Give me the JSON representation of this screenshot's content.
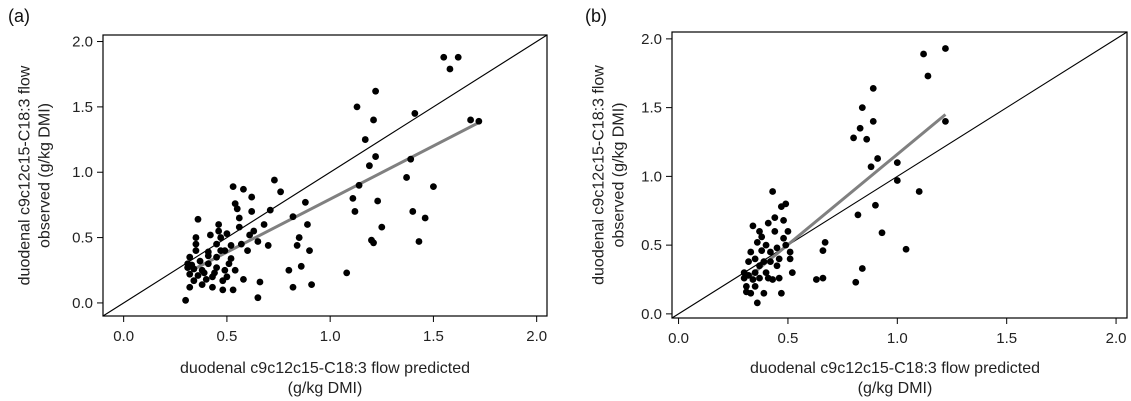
{
  "chart_data": [
    {
      "type": "scatter",
      "panel_label": "(a)",
      "xlabel": [
        "duodenal c9c12c15-C18:3 flow predicted",
        "(g/kg DMI)"
      ],
      "ylabel": [
        "duodenal c9c12c15-C18:3 flow",
        "observed (g/kg DMI)"
      ],
      "xlim": [
        -0.1,
        2.05
      ],
      "ylim": [
        -0.1,
        2.05
      ],
      "xticks": [
        "0.0",
        "0.5",
        "1.0",
        "1.5",
        "2.0"
      ],
      "yticks": [
        "0.0",
        "0.5",
        "1.0",
        "1.5",
        "2.0"
      ],
      "identity_line": true,
      "regression_line": {
        "x": [
          0.33,
          1.72
        ],
        "y": [
          0.25,
          1.38
        ],
        "color": "#808080"
      },
      "points": [
        [
          0.31,
          0.27
        ],
        [
          0.32,
          0.22
        ],
        [
          0.32,
          0.12
        ],
        [
          0.3,
          0.02
        ],
        [
          0.31,
          0.3
        ],
        [
          0.32,
          0.35
        ],
        [
          0.33,
          0.29
        ],
        [
          0.34,
          0.17
        ],
        [
          0.34,
          0.26
        ],
        [
          0.35,
          0.4
        ],
        [
          0.35,
          0.45
        ],
        [
          0.35,
          0.5
        ],
        [
          0.36,
          0.64
        ],
        [
          0.36,
          0.21
        ],
        [
          0.37,
          0.32
        ],
        [
          0.38,
          0.14
        ],
        [
          0.38,
          0.25
        ],
        [
          0.39,
          0.23
        ],
        [
          0.4,
          0.18
        ],
        [
          0.41,
          0.3
        ],
        [
          0.41,
          0.36
        ],
        [
          0.41,
          0.39
        ],
        [
          0.42,
          0.52
        ],
        [
          0.43,
          0.2
        ],
        [
          0.43,
          0.12
        ],
        [
          0.44,
          0.23
        ],
        [
          0.45,
          0.27
        ],
        [
          0.45,
          0.35
        ],
        [
          0.45,
          0.45
        ],
        [
          0.46,
          0.55
        ],
        [
          0.46,
          0.6
        ],
        [
          0.47,
          0.5
        ],
        [
          0.47,
          0.4
        ],
        [
          0.48,
          0.1
        ],
        [
          0.48,
          0.17
        ],
        [
          0.49,
          0.25
        ],
        [
          0.49,
          0.4
        ],
        [
          0.5,
          0.53
        ],
        [
          0.5,
          0.2
        ],
        [
          0.51,
          0.3
        ],
        [
          0.52,
          0.34
        ],
        [
          0.52,
          0.44
        ],
        [
          0.53,
          0.89
        ],
        [
          0.53,
          0.1
        ],
        [
          0.54,
          0.25
        ],
        [
          0.54,
          0.76
        ],
        [
          0.55,
          0.72
        ],
        [
          0.56,
          0.65
        ],
        [
          0.56,
          0.58
        ],
        [
          0.57,
          0.45
        ],
        [
          0.58,
          0.87
        ],
        [
          0.58,
          0.18
        ],
        [
          0.6,
          0.4
        ],
        [
          0.61,
          0.52
        ],
        [
          0.62,
          0.81
        ],
        [
          0.62,
          0.7
        ],
        [
          0.63,
          0.55
        ],
        [
          0.65,
          0.47
        ],
        [
          0.65,
          0.04
        ],
        [
          0.66,
          0.16
        ],
        [
          0.68,
          0.6
        ],
        [
          0.7,
          0.44
        ],
        [
          0.71,
          0.71
        ],
        [
          0.73,
          0.94
        ],
        [
          0.76,
          0.85
        ],
        [
          0.8,
          0.25
        ],
        [
          0.82,
          0.66
        ],
        [
          0.82,
          0.12
        ],
        [
          0.84,
          0.44
        ],
        [
          0.85,
          0.5
        ],
        [
          0.86,
          0.28
        ],
        [
          0.88,
          0.77
        ],
        [
          0.89,
          0.6
        ],
        [
          0.9,
          0.4
        ],
        [
          0.91,
          0.14
        ],
        [
          1.08,
          0.23
        ],
        [
          1.11,
          0.8
        ],
        [
          1.12,
          0.7
        ],
        [
          1.13,
          1.5
        ],
        [
          1.14,
          0.9
        ],
        [
          1.17,
          1.25
        ],
        [
          1.19,
          1.05
        ],
        [
          1.2,
          0.48
        ],
        [
          1.21,
          1.4
        ],
        [
          1.21,
          0.46
        ],
        [
          1.22,
          1.62
        ],
        [
          1.22,
          1.12
        ],
        [
          1.23,
          0.78
        ],
        [
          1.25,
          0.58
        ],
        [
          1.37,
          0.96
        ],
        [
          1.39,
          1.1
        ],
        [
          1.4,
          0.7
        ],
        [
          1.41,
          1.45
        ],
        [
          1.43,
          0.47
        ],
        [
          1.46,
          0.65
        ],
        [
          1.5,
          0.89
        ],
        [
          1.55,
          1.88
        ],
        [
          1.58,
          1.79
        ],
        [
          1.62,
          1.88
        ],
        [
          1.68,
          1.4
        ],
        [
          1.72,
          1.39
        ]
      ]
    },
    {
      "type": "scatter",
      "panel_label": "(b)",
      "xlabel": [
        "duodenal c9c12c15-C18:3 flow predicted",
        "(g/kg DMI)"
      ],
      "ylabel": [
        "duodenal c9c12c15-C18:3 flow",
        "observed (g/kg DMI)"
      ],
      "xlim": [
        -0.03,
        2.05
      ],
      "ylim": [
        -0.03,
        2.05
      ],
      "xticks": [
        "0.0",
        "0.5",
        "1.0",
        "1.5",
        "2.0"
      ],
      "yticks": [
        "0.0",
        "0.5",
        "1.0",
        "1.5",
        "2.0"
      ],
      "identity_line": true,
      "regression_line": {
        "x": [
          0.33,
          1.22
        ],
        "y": [
          0.28,
          1.45
        ],
        "color": "#808080"
      },
      "points": [
        [
          0.3,
          0.26
        ],
        [
          0.3,
          0.3
        ],
        [
          0.31,
          0.2
        ],
        [
          0.31,
          0.16
        ],
        [
          0.32,
          0.28
        ],
        [
          0.32,
          0.38
        ],
        [
          0.33,
          0.45
        ],
        [
          0.33,
          0.15
        ],
        [
          0.34,
          0.25
        ],
        [
          0.34,
          0.64
        ],
        [
          0.35,
          0.4
        ],
        [
          0.35,
          0.3
        ],
        [
          0.35,
          0.2
        ],
        [
          0.36,
          0.52
        ],
        [
          0.36,
          0.08
        ],
        [
          0.37,
          0.6
        ],
        [
          0.37,
          0.35
        ],
        [
          0.37,
          0.26
        ],
        [
          0.38,
          0.56
        ],
        [
          0.38,
          0.46
        ],
        [
          0.39,
          0.15
        ],
        [
          0.39,
          0.38
        ],
        [
          0.4,
          0.5
        ],
        [
          0.4,
          0.3
        ],
        [
          0.41,
          0.26
        ],
        [
          0.41,
          0.66
        ],
        [
          0.42,
          0.45
        ],
        [
          0.42,
          0.38
        ],
        [
          0.43,
          0.25
        ],
        [
          0.43,
          0.89
        ],
        [
          0.44,
          0.7
        ],
        [
          0.44,
          0.6
        ],
        [
          0.45,
          0.48
        ],
        [
          0.45,
          0.35
        ],
        [
          0.46,
          0.4
        ],
        [
          0.46,
          0.26
        ],
        [
          0.47,
          0.15
        ],
        [
          0.47,
          0.78
        ],
        [
          0.48,
          0.68
        ],
        [
          0.48,
          0.55
        ],
        [
          0.49,
          0.8
        ],
        [
          0.49,
          0.5
        ],
        [
          0.5,
          0.6
        ],
        [
          0.51,
          0.4
        ],
        [
          0.51,
          0.45
        ],
        [
          0.52,
          0.3
        ],
        [
          0.63,
          0.25
        ],
        [
          0.66,
          0.26
        ],
        [
          0.66,
          0.46
        ],
        [
          0.67,
          0.52
        ],
        [
          0.8,
          1.28
        ],
        [
          0.81,
          0.23
        ],
        [
          0.82,
          0.72
        ],
        [
          0.83,
          1.35
        ],
        [
          0.84,
          0.33
        ],
        [
          0.84,
          1.5
        ],
        [
          0.86,
          1.27
        ],
        [
          0.88,
          1.07
        ],
        [
          0.89,
          1.4
        ],
        [
          0.89,
          1.64
        ],
        [
          0.9,
          0.79
        ],
        [
          0.91,
          1.13
        ],
        [
          0.93,
          0.59
        ],
        [
          1.0,
          1.1
        ],
        [
          1.0,
          0.97
        ],
        [
          1.04,
          0.47
        ],
        [
          1.1,
          0.89
        ],
        [
          1.12,
          1.89
        ],
        [
          1.14,
          1.73
        ],
        [
          1.22,
          1.93
        ],
        [
          1.22,
          1.4
        ]
      ]
    }
  ]
}
